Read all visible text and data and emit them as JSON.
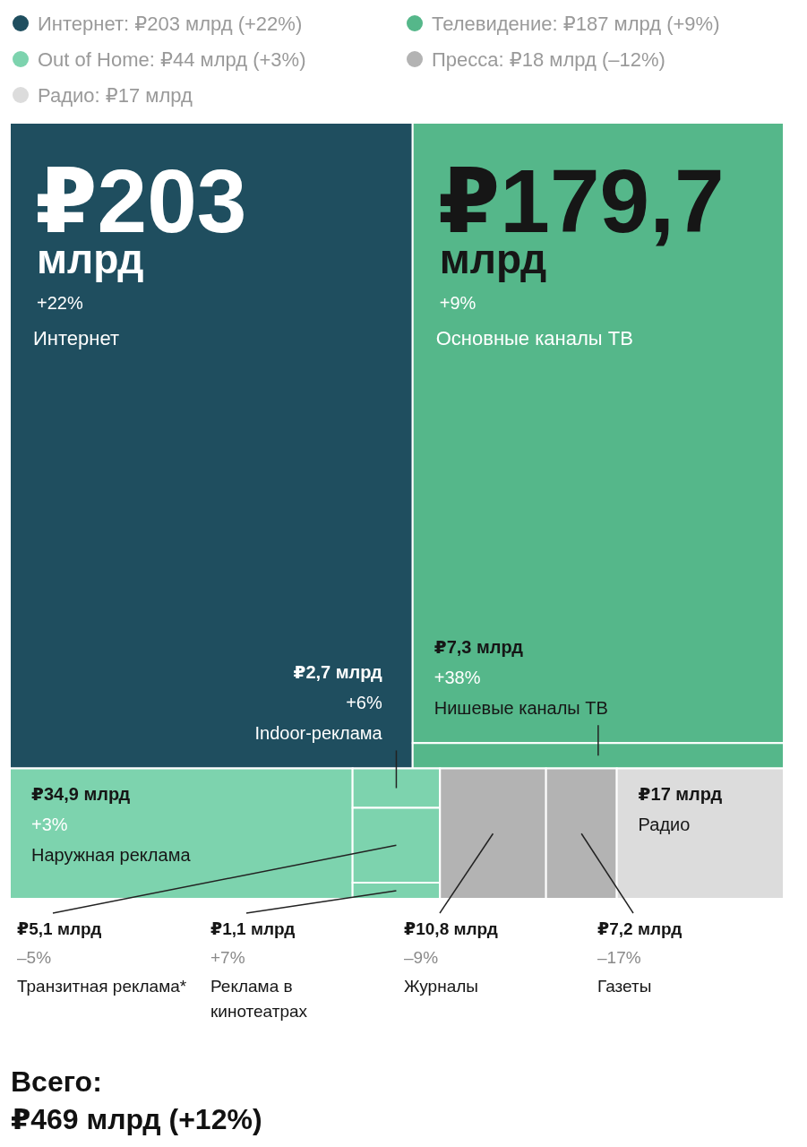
{
  "chart_data": {
    "type": "other",
    "legend": "top",
    "categories": [
      "Интернет",
      "Основные каналы ТВ",
      "Нишевые каналы ТВ",
      "Наружная реклама",
      "Indoor-реклама",
      "Транзитная реклама*",
      "Реклама в кинотеатрах",
      "Журналы",
      "Газеты",
      "Радио"
    ],
    "series": [
      {
        "name": "Интернет: ₽203 млрд (+22%)",
        "color": "#1f4e5f",
        "values": [
          203,
          null,
          null,
          null,
          null,
          null,
          null,
          null,
          null,
          null
        ],
        "value_labels": [
          "₽203 млрд",
          null,
          null,
          null,
          null,
          null,
          null,
          null,
          null,
          null
        ]
      },
      {
        "name": "Телевидение: ₽187 млрд (+9%)",
        "color": "#55b78a",
        "values": [
          null,
          179.7,
          7.3,
          null,
          null,
          null,
          null,
          null,
          null,
          null
        ],
        "value_labels": [
          null,
          "₽179,7 млрд",
          "₽7,3 млрд",
          null,
          null,
          null,
          null,
          null,
          null,
          null
        ]
      },
      {
        "name": "Out of Home: ₽44 млрд (+3%)",
        "color": "#7dd3ae",
        "values": [
          null,
          null,
          null,
          34.9,
          2.7,
          5.1,
          1.1,
          null,
          null,
          null
        ],
        "value_labels": [
          null,
          null,
          null,
          "₽34,9 млрд",
          "₽2,7 млрд",
          "₽5,1 млрд",
          "₽1,1 млрд",
          null,
          null,
          null
        ]
      },
      {
        "name": "Пресса: ₽18 млрд (–12%)",
        "color": "#b3b3b3",
        "values": [
          null,
          null,
          null,
          null,
          null,
          null,
          null,
          10.8,
          7.2,
          null
        ],
        "value_labels": [
          null,
          null,
          null,
          null,
          null,
          null,
          null,
          "₽10,8 млрд",
          "₽7,2 млрд",
          null
        ]
      },
      {
        "name": "Радио: ₽17 млрд",
        "color": "#dcdcdc",
        "values": [
          null,
          null,
          null,
          null,
          null,
          null,
          null,
          null,
          null,
          17
        ],
        "value_labels": [
          null,
          null,
          null,
          null,
          null,
          null,
          null,
          null,
          null,
          "₽17 млрд"
        ]
      }
    ],
    "annotations": [
      {
        "text": "+22%",
        "x": "Интернет"
      },
      {
        "text": "+9%",
        "x": "Основные каналы ТВ"
      },
      {
        "text": "+38%",
        "x": "Нишевые каналы ТВ"
      },
      {
        "text": "+3%",
        "x": "Наружная реклама"
      },
      {
        "text": "+6%",
        "x": "Indoor-реклама"
      },
      {
        "text": "–5%",
        "x": "Транзитная реклама*"
      },
      {
        "text": "+7%",
        "x": "Реклама в кинотеатрах"
      },
      {
        "text": "–9%",
        "x": "Журналы"
      },
      {
        "text": "–17%",
        "x": "Газеты"
      },
      "Всего:",
      "₽469 млрд (+12%)"
    ]
  }
}
